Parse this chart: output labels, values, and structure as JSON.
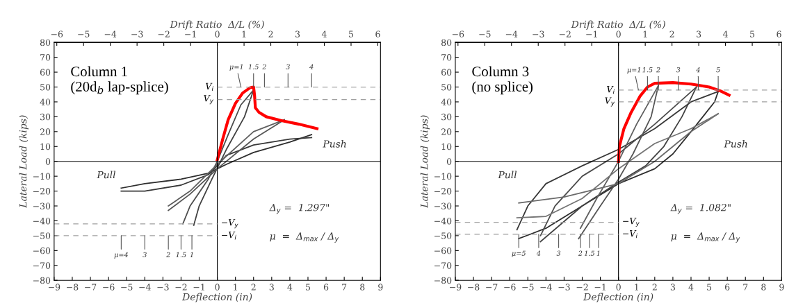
{
  "chart_data": [
    {
      "type": "line",
      "title": "Column 1\n(20d$_{b}$ lap-splice)",
      "xlabel": "Deflection (in)",
      "ylabel": "Lateral Load (kips)",
      "x2label": "Drift Ratio  Δ/L (%)",
      "xlim": [
        -9,
        9
      ],
      "xticks": [
        -9,
        -8,
        -7,
        -6,
        -5,
        -4,
        -3,
        -2,
        -1,
        0,
        1,
        2,
        3,
        4,
        5,
        6,
        7,
        8,
        9
      ],
      "ylim": [
        -80,
        80
      ],
      "yticks": [
        -80,
        -70,
        -60,
        -50,
        -40,
        -30,
        -20,
        -10,
        0,
        10,
        20,
        30,
        40,
        50,
        60,
        70,
        80
      ],
      "x2lim": [
        -6.1,
        6.1
      ],
      "x2ticks": [
        -6,
        -5,
        -4,
        -3,
        -2,
        -1,
        0,
        1,
        2,
        3,
        4,
        5,
        6
      ],
      "legend": false,
      "series": [
        {
          "color": "#2e2e2e",
          "x": [
            -5.3,
            -4,
            -2,
            -0.5,
            0.5,
            2,
            4,
            5.2
          ],
          "values": [
            -18,
            -15,
            -12,
            -8,
            -2,
            6,
            13,
            18
          ]
        },
        {
          "color": "#383838",
          "x": [
            -5.3,
            -4,
            -2,
            -0.5,
            0,
            0.5,
            2,
            4,
            5.2
          ],
          "values": [
            -20,
            -20,
            -16,
            -9,
            -3,
            4,
            11,
            15,
            16
          ]
        },
        {
          "color": "#424242",
          "x": [
            -1.3,
            -1,
            -0.3,
            0.5,
            1.5,
            2
          ],
          "values": [
            -43,
            -30,
            -12,
            8,
            30,
            48
          ]
        },
        {
          "color": "#4c4c4c",
          "x": [
            -1.9,
            -1.5,
            -0.5,
            0,
            0.6,
            1.3,
            2
          ],
          "values": [
            -42,
            -30,
            -12,
            0,
            18,
            38,
            48
          ]
        },
        {
          "color": "#565656",
          "x": [
            -2.7,
            -1.5,
            0,
            2,
            3.7
          ],
          "values": [
            -33,
            -22,
            -5,
            15,
            28
          ]
        },
        {
          "color": "#606060",
          "x": [
            -2.7,
            -1.5,
            0,
            2,
            3.7
          ],
          "values": [
            -30,
            -20,
            -2,
            20,
            28
          ]
        },
        {
          "color": "#ff0000",
          "x": [
            0,
            0.3,
            0.6,
            1.0,
            1.4,
            1.8,
            2.0,
            2.05,
            2.1,
            2.3,
            2.7,
            3.5,
            4.5,
            5.5
          ],
          "values": [
            1,
            15,
            28,
            39,
            46,
            49.5,
            50,
            45,
            36,
            33,
            30,
            27.5,
            25,
            22
          ]
        }
      ],
      "ref_lines": [
        {
          "axis": "x",
          "value": 0,
          "color": "#000000"
        },
        {
          "axis": "y",
          "value": 0,
          "color": "#000000"
        },
        {
          "axis": "y",
          "value": 50,
          "label": "V$_{i}$",
          "line_style": "dashed",
          "color": "#a0a0a0"
        },
        {
          "axis": "y",
          "value": 41.5,
          "label": "V$_{y}$",
          "line_style": "dashed",
          "color": "#a0a0a0"
        },
        {
          "axis": "y",
          "value": -42,
          "label": "−V$_{y}$",
          "line_style": "dashed",
          "color": "#a0a0a0"
        },
        {
          "axis": "y",
          "value": -50,
          "label": "−V$_{i}$",
          "line_style": "dashed",
          "color": "#a0a0a0"
        }
      ],
      "annotations": [
        "Push",
        "Pull",
        "Δ$_{y}$ =  1.297\"",
        "μ  =  Δ$_{max}$ / Δ$_{y}$",
        {
          "text": "μ=1",
          "x": 1.3,
          "y": 50
        },
        {
          "text": "1.5",
          "x": 2.0,
          "y": 50
        },
        {
          "text": "2",
          "x": 2.6,
          "y": 50
        },
        {
          "text": "3",
          "x": 3.9,
          "y": 50
        },
        {
          "text": "4",
          "x": 5.2,
          "y": 50
        },
        {
          "text": "μ=4",
          "x": -5.3,
          "y": -50
        },
        {
          "text": "3",
          "x": -4.0,
          "y": -50
        },
        {
          "text": "2",
          "x": -2.7,
          "y": -50
        },
        {
          "text": "1.5",
          "x": -2.0,
          "y": -50
        },
        {
          "text": "1",
          "x": -1.4,
          "y": -50
        }
      ]
    },
    {
      "type": "line",
      "title": "Column 3\n(no splice)",
      "xlabel": "Deflection (in)",
      "ylabel": "Lateral Load (kips)",
      "x2label": "Drift Ratio  Δ/L (%)",
      "xlim": [
        -9,
        9
      ],
      "xticks": [
        -9,
        -8,
        -7,
        -6,
        -5,
        -4,
        -3,
        -2,
        -1,
        0,
        1,
        2,
        3,
        4,
        5,
        6,
        7,
        8,
        9
      ],
      "ylim": [
        -80,
        80
      ],
      "yticks": [
        -80,
        -70,
        -60,
        -50,
        -40,
        -30,
        -20,
        -10,
        0,
        10,
        20,
        30,
        40,
        50,
        60,
        70,
        80
      ],
      "x2lim": [
        -6.1,
        6.1
      ],
      "x2ticks": [
        -6,
        -5,
        -4,
        -3,
        -2,
        -1,
        0,
        1,
        2,
        3,
        4,
        5,
        6
      ],
      "legend": false,
      "series": [
        {
          "color": "#2e2e2e",
          "x": [
            -5.5,
            -4,
            -2,
            0,
            2,
            3,
            4,
            5.3,
            5.5
          ],
          "values": [
            -52,
            -45,
            -30,
            -15,
            -5,
            5,
            20,
            40,
            47
          ]
        },
        {
          "color": "#383838",
          "x": [
            -5.6,
            -5,
            -4,
            -2,
            0,
            2,
            4,
            5.5
          ],
          "values": [
            -46,
            -30,
            -15,
            -3,
            8,
            22,
            40,
            47
          ]
        },
        {
          "color": "#424242",
          "x": [
            -4.3,
            -2,
            0,
            1.5,
            2.5,
            3.5,
            4.3
          ],
          "values": [
            -54,
            -30,
            -14,
            -3,
            10,
            30,
            50
          ]
        },
        {
          "color": "#4c4c4c",
          "x": [
            -4.3,
            -3.5,
            -2,
            0,
            2,
            4.3
          ],
          "values": [
            -50,
            -30,
            -10,
            5,
            25,
            50
          ]
        },
        {
          "color": "#565656",
          "x": [
            -2.2,
            -1,
            0,
            0.8,
            1.8,
            2.2
          ],
          "values": [
            -52,
            -30,
            -12,
            5,
            30,
            51
          ]
        },
        {
          "color": "#606060",
          "x": [
            -2.1,
            -1.2,
            0,
            1,
            2.2
          ],
          "values": [
            -45,
            -25,
            0,
            25,
            51
          ]
        },
        {
          "color": "#6a6a6a",
          "x": [
            -5.5,
            -3,
            0,
            2,
            4,
            5.5
          ],
          "values": [
            -28,
            -24,
            -15,
            0,
            20,
            32
          ]
        },
        {
          "color": "#747474",
          "x": [
            -5.6,
            -4,
            -2,
            0,
            2,
            4,
            5.5
          ],
          "values": [
            -38,
            -37,
            -25,
            -5,
            12,
            22,
            32
          ]
        },
        {
          "color": "#ff0000",
          "x": [
            0,
            0.05,
            0.3,
            0.7,
            1.2,
            1.6,
            2.0,
            3.0,
            4.0,
            5.0,
            5.6,
            6.1
          ],
          "values": [
            0,
            10,
            22,
            33,
            44,
            50,
            52.5,
            53,
            52,
            50,
            47.5,
            44.5
          ]
        }
      ],
      "ref_lines": [
        {
          "axis": "x",
          "value": 0,
          "color": "#000000"
        },
        {
          "axis": "y",
          "value": 0,
          "color": "#000000"
        },
        {
          "axis": "y",
          "value": 48,
          "label": "V$_{i}$",
          "line_style": "dashed",
          "color": "#a0a0a0"
        },
        {
          "axis": "y",
          "value": 40,
          "label": "V$_{y}$",
          "line_style": "dashed",
          "color": "#a0a0a0"
        },
        {
          "axis": "y",
          "value": -41,
          "label": "−V$_{y}$",
          "line_style": "dashed",
          "color": "#a0a0a0"
        },
        {
          "axis": "y",
          "value": -49,
          "label": "−V$_{i}$",
          "line_style": "dashed",
          "color": "#a0a0a0"
        }
      ],
      "annotations": [
        "Push",
        "Pull",
        "Δ$_{y}$ =  1.082\"",
        "μ  =  Δ$_{max}$ / Δ$_{y}$",
        {
          "text": "μ=1",
          "x": 1.1,
          "y": 48
        },
        {
          "text": "1.5",
          "x": 1.6,
          "y": 48
        },
        {
          "text": "2",
          "x": 2.2,
          "y": 48
        },
        {
          "text": "3",
          "x": 3.3,
          "y": 48
        },
        {
          "text": "4",
          "x": 4.4,
          "y": 48
        },
        {
          "text": "5",
          "x": 5.5,
          "y": 48
        },
        {
          "text": "μ=5",
          "x": -5.5,
          "y": -49
        },
        {
          "text": "4",
          "x": -4.4,
          "y": -49
        },
        {
          "text": "3",
          "x": -3.3,
          "y": -49
        },
        {
          "text": "2",
          "x": -2.1,
          "y": -49
        },
        {
          "text": "1.5",
          "x": -1.6,
          "y": -49
        },
        {
          "text": "1",
          "x": -1.1,
          "y": -49
        }
      ]
    }
  ]
}
